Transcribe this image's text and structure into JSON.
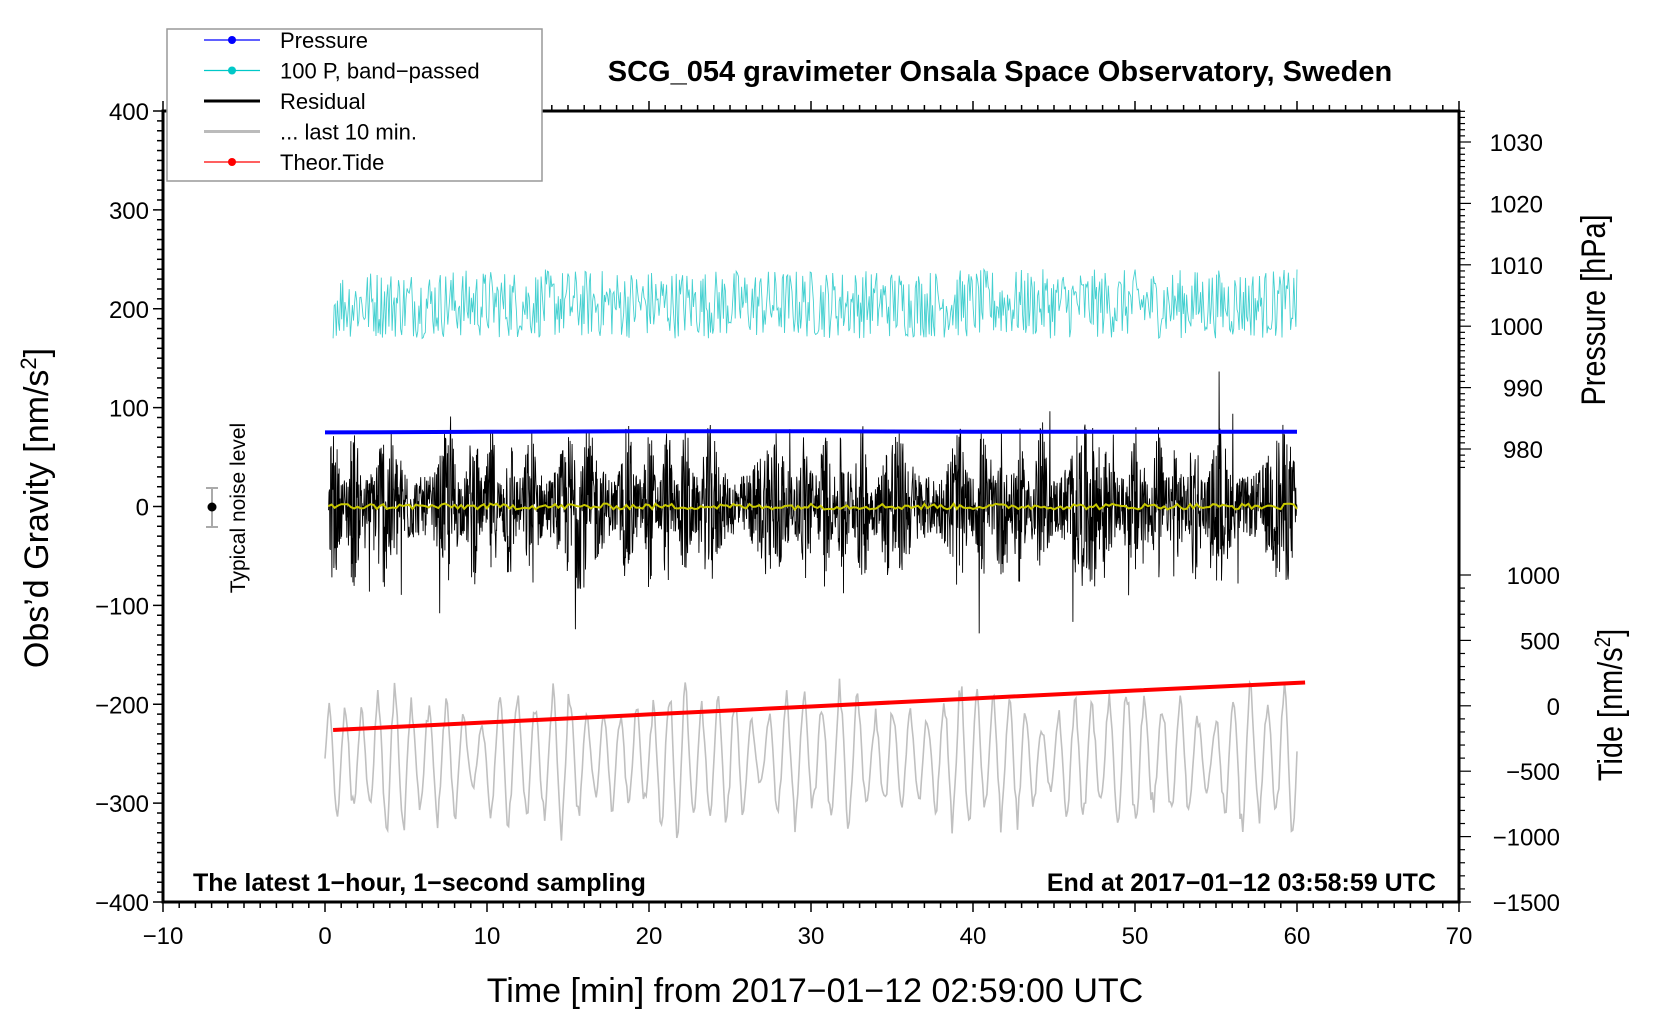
{
  "chart_data": {
    "type": "line",
    "title": "SCG_054 gravimeter Onsala Space Observatory, Sweden",
    "xlabel": "Time [min] from 2017−01−12 02:59:00 UTC",
    "ylabel": "Obs’d Gravity [nm/s",
    "ylabel_sup": "2",
    "ylabel_end": "]",
    "y2label": "Pressure [hPa]",
    "y3label": "Tide [nm/s",
    "y3label_sup": "2",
    "y3label_end": "]",
    "xlim": [
      -10,
      70
    ],
    "ylim": [
      -400,
      400
    ],
    "y2lim_ticks": [
      980,
      1030
    ],
    "y3lim": [
      -1500,
      1000
    ],
    "x_ticks": [
      "−10",
      "0",
      "10",
      "20",
      "30",
      "40",
      "50",
      "60",
      "70"
    ],
    "y_ticks": [
      "400",
      "300",
      "200",
      "100",
      "0",
      "−100",
      "−200",
      "−300",
      "−400"
    ],
    "y2_ticks": [
      "1030",
      "1020",
      "1010",
      "1000",
      "990",
      "980"
    ],
    "y3_ticks": [
      "1000",
      "500",
      "0",
      "−500",
      "−1000",
      "−1500"
    ],
    "annotations": {
      "bottom_left": "The latest 1−hour, 1−second sampling",
      "bottom_right": "End at 2017−01−12 03:58:59 UTC",
      "noise_label": "Typical noise level",
      "noise_level_nm_s2": 20
    },
    "legend_position": "top-left",
    "legend": [
      {
        "label": "Pressure",
        "color": "#0000ff",
        "marker": true
      },
      {
        "label": "100 P, band−passed",
        "color": "#00c8c8",
        "marker": true
      },
      {
        "label": "Residual",
        "color": "#000000",
        "marker": false
      },
      {
        "label": "... last 10 min.",
        "color": "#bbbbbb",
        "marker": false
      },
      {
        "label": "Theor.Tide",
        "color": "#ff0000",
        "marker": true
      }
    ],
    "series": [
      {
        "name": "Pressure",
        "axis": "pressure_hPa",
        "x": [
          0,
          10,
          20,
          30,
          40,
          50,
          60
        ],
        "values": [
          982.7,
          982.8,
          982.9,
          982.9,
          982.8,
          982.8,
          982.8
        ],
        "color": "#0000ff"
      },
      {
        "name": "Theor.Tide",
        "axis": "tide_nm_s2",
        "x": [
          0.5,
          10,
          20,
          30,
          40,
          50,
          60.5
        ],
        "values": [
          -185,
          -127,
          -66,
          -5,
          56,
          117,
          178
        ],
        "color": "#ff0000"
      },
      {
        "name": "100 P, band-passed",
        "axis": "gravity_nm_s2",
        "x_range": [
          0.5,
          60
        ],
        "center": 205,
        "amplitude": 35,
        "peak_min": 115,
        "peak_max": 305,
        "color": "#44d0d0"
      },
      {
        "name": "Residual",
        "axis": "gravity_nm_s2",
        "x_range": [
          0.2,
          60
        ],
        "center": 0,
        "amplitude": 60,
        "peak_min": -145,
        "peak_max": 175,
        "color": "#000000"
      },
      {
        "name": "Residual smoothed",
        "axis": "gravity_nm_s2",
        "x_range": [
          0.2,
          60
        ],
        "center": 0,
        "amplitude": 3,
        "color": "#c8c800"
      },
      {
        "name": "... last 10 min.",
        "axis": "gravity_nm_s2",
        "x_range": [
          0,
          60
        ],
        "center": -255,
        "amplitude": 55,
        "peak_min": -395,
        "peak_max": -90,
        "color": "#c0c0c0"
      }
    ]
  }
}
